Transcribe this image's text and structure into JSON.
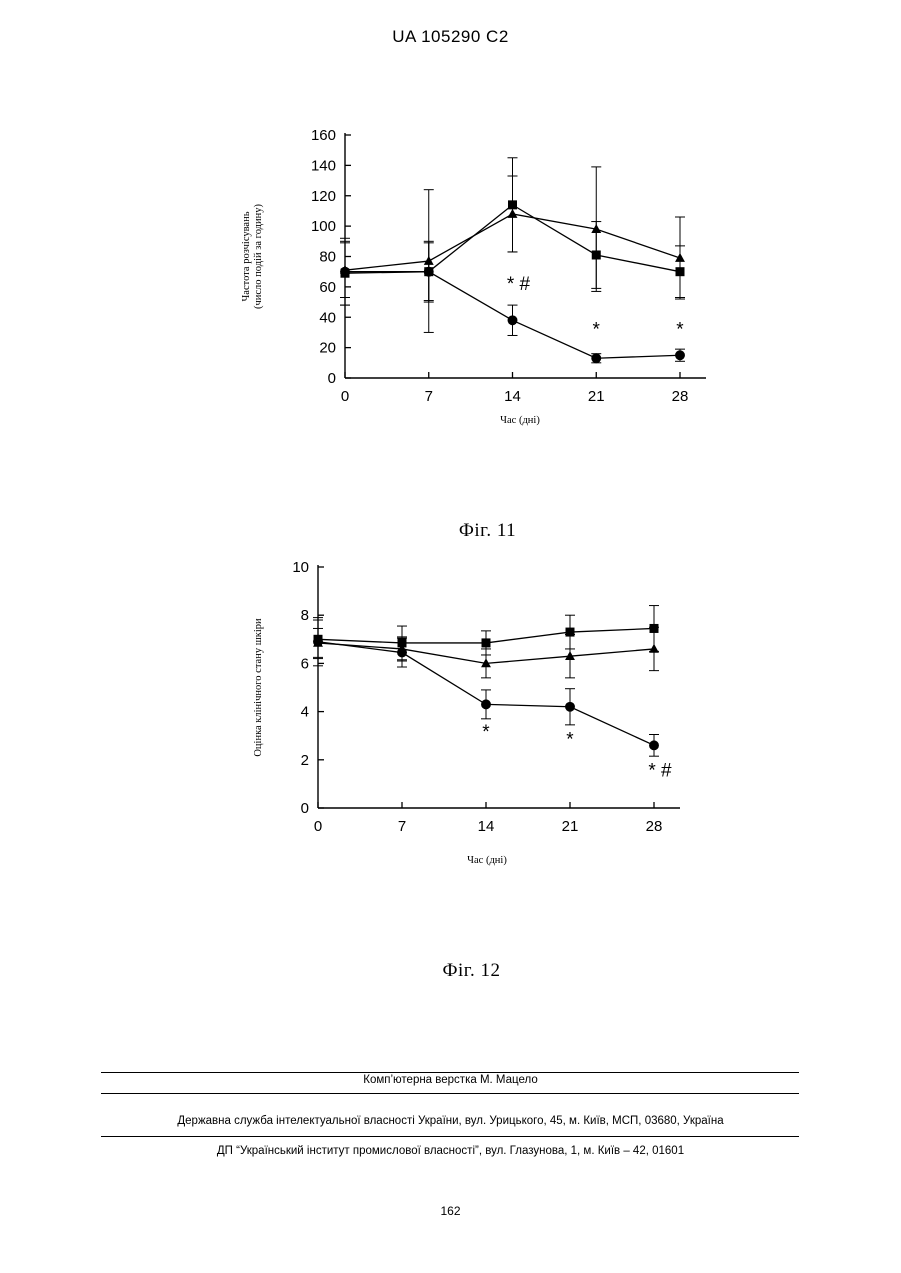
{
  "header": {
    "patent_id": "UA   105290   C2"
  },
  "chart_data": [
    {
      "type": "line",
      "figure_caption": "Фіг. 11",
      "xlabel": "Час (дні)",
      "ylabel": "Частота розчісувань\n(число подій за годину)",
      "ylabel_lines": [
        "Частота розчісувань",
        "(число подій за годину)"
      ],
      "x": [
        0,
        7,
        14,
        21,
        28
      ],
      "x_ticks": [
        "0",
        "7",
        "14",
        "21",
        "28"
      ],
      "y_ticks": [
        "0",
        "20",
        "40",
        "60",
        "80",
        "100",
        "120",
        "140",
        "160"
      ],
      "ylim": [
        0,
        160
      ],
      "grid": false,
      "legend": "none",
      "series": [
        {
          "marker": "circle",
          "values": [
            70,
            70,
            38,
            13,
            15
          ],
          "error": [
            22,
            20,
            10,
            3,
            4
          ]
        },
        {
          "marker": "square",
          "values": [
            69,
            70,
            114,
            81,
            70
          ],
          "error": [
            21,
            19,
            31,
            22,
            17
          ]
        },
        {
          "marker": "triangle",
          "values": [
            71,
            77,
            108,
            98,
            79
          ],
          "error": [
            18,
            47,
            25,
            41,
            27
          ]
        }
      ],
      "annotations": [
        {
          "x": 14,
          "y": 58,
          "text": "* #"
        },
        {
          "x": 21,
          "y": 28,
          "text": "*"
        },
        {
          "x": 28,
          "y": 28,
          "text": "*"
        }
      ]
    },
    {
      "type": "line",
      "figure_caption": "Фіг. 12",
      "xlabel": "Час (дні)",
      "ylabel": "Оцінка клінічного стану шкіри",
      "ylabel_lines": [
        "Оцінка клінічного стану шкіри"
      ],
      "x": [
        0,
        7,
        14,
        21,
        28
      ],
      "x_ticks": [
        "0",
        "7",
        "14",
        "21",
        "28"
      ],
      "y_ticks": [
        "0",
        "2",
        "4",
        "6",
        "8",
        "10"
      ],
      "ylim": [
        0,
        10
      ],
      "grid": false,
      "legend": "none",
      "series": [
        {
          "marker": "circle",
          "values": [
            6.9,
            6.45,
            4.3,
            4.2,
            2.6
          ],
          "error": [
            1.0,
            0.6,
            0.6,
            0.75,
            0.45
          ]
        },
        {
          "marker": "square",
          "values": [
            7.0,
            6.85,
            6.85,
            7.3,
            7.45
          ],
          "error": [
            0.8,
            0.7,
            0.5,
            0.7,
            0.95
          ]
        },
        {
          "marker": "triangle",
          "values": [
            6.85,
            6.6,
            6.0,
            6.3,
            6.6
          ],
          "error": [
            0.6,
            0.5,
            0.6,
            0.9,
            0.9
          ]
        }
      ],
      "annotations": [
        {
          "x": 14,
          "y": 2.9,
          "text": "*"
        },
        {
          "x": 21,
          "y": 2.6,
          "text": "*"
        },
        {
          "x": 28,
          "y": 1.3,
          "text": "* #"
        }
      ]
    }
  ],
  "footer": {
    "typesetting": "Комп’ютерна верстка М. Мацело",
    "agency": "Державна служба інтелектуальної власності України, вул. Урицького, 45, м. Київ, МСП, 03680, Україна",
    "institute": "ДП “Український інститут промислової власності”, вул. Глазунова, 1, м. Київ – 42, 01601",
    "page_number": "162"
  }
}
